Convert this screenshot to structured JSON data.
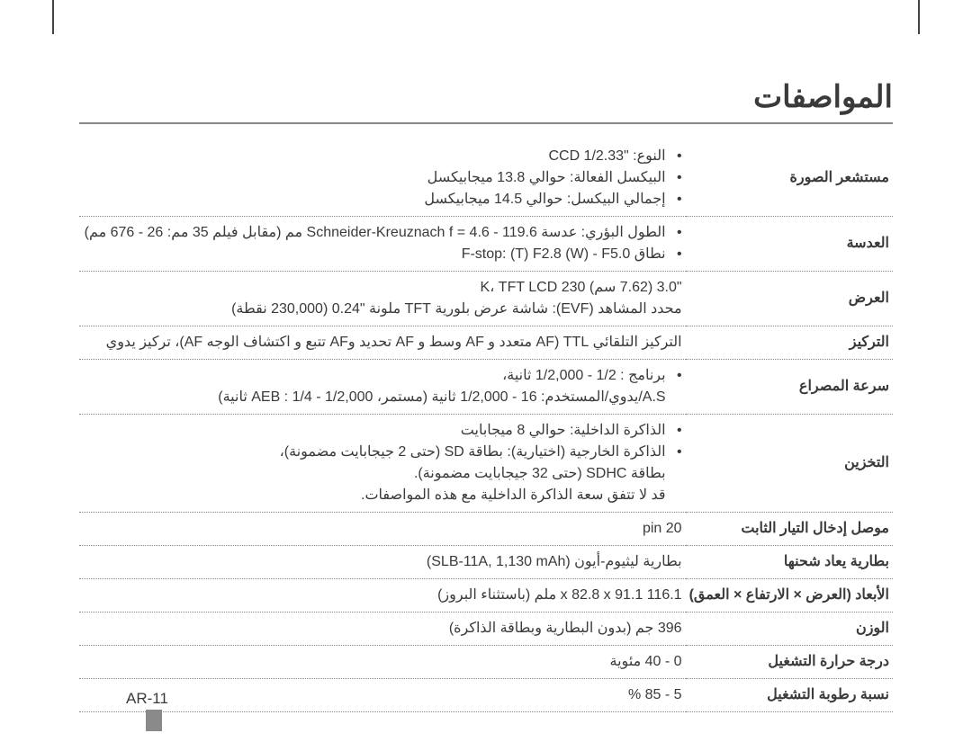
{
  "title": "المواصفات",
  "page_number": "AR-11",
  "rows": [
    {
      "label": "مستشعر الصورة",
      "items": [
        "النوع: \"CCD 1/2.33",
        "البيكسل الفعالة: حوالي 13.8 ميجابيكسل",
        "إجمالي البيكسل: حوالي 14.5 ميجابيكسل"
      ]
    },
    {
      "label": "العدسة",
      "items": [
        "الطول البؤري: عدسة Schneider-Kreuznach f = 4.6 - 119.6 مم (مقابل فيلم 35 مم: 26 - 676 مم)",
        "نطاق F-stop: (T) F2.8 (W) - F5.0"
      ]
    },
    {
      "label": "العرض",
      "text": "\"3.0 (7.62 سم) 230 K، TFT LCD\nمحدد المشاهد (EVF): شاشة عرض بلورية TFT ملونة \"0.24 (230,000 نقطة)"
    },
    {
      "label": "التركيز",
      "text": "التركيز التلقائي TTL (AF متعدد و AF وسط و AF تحديد وAF تتبع و اكتشاف الوجه AF)، تركيز يدوي"
    },
    {
      "label": "سرعة المصراع",
      "items": [
        "برنامج : 1/2 - 1/2,000 ثانية،\nA.S/يدوي/المستخدم: 16 - 1/2,000 ثانية (مستمر، AEB : 1/4 - 1/2,000 ثانية)"
      ]
    },
    {
      "label": "التخزين",
      "items": [
        "الذاكرة الداخلية: حوالي 8 ميجابايت",
        "الذاكرة الخارجية (اختيارية): بطاقة SD (حتى 2 جيجابايت مضمونة)،\nبطاقة SDHC (حتى 32 جيجابايت مضمونة).\nقد لا تتفق سعة الذاكرة الداخلية مع هذه المواصفات."
      ]
    },
    {
      "label": "موصل إدخال التيار الثابت",
      "text": "20 pin"
    },
    {
      "label": "بطارية يعاد شحنها",
      "text": "بطارية ليثيوم-أيون (SLB-11A, 1,130 mAh)"
    },
    {
      "label": "الأبعاد (العرض × الارتفاع × العمق)",
      "text": "116.1 x 82.8 x 91.1 ملم (باستثناء البروز)"
    },
    {
      "label": "الوزن",
      "text": "396 جم (بدون البطارية وبطاقة الذاكرة)"
    },
    {
      "label": "درجة حرارة التشغيل",
      "text": "0 - 40 مئوية"
    },
    {
      "label": "نسبة رطوبة التشغيل",
      "text": "5 - 85 %"
    }
  ]
}
